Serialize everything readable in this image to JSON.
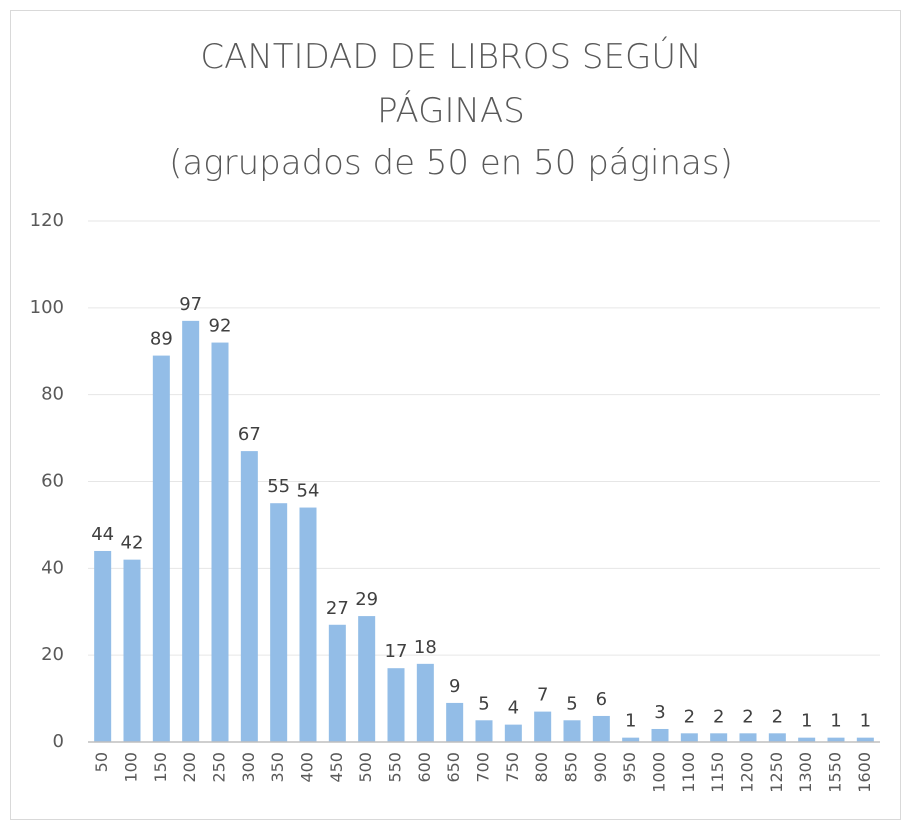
{
  "chart_data": {
    "type": "bar",
    "title": "CANTIDAD DE LIBROS SEGÚN PÁGINAS",
    "subtitle": "(agrupados de 50 en 50 páginas)",
    "categories": [
      "50",
      "100",
      "150",
      "200",
      "250",
      "300",
      "350",
      "400",
      "450",
      "500",
      "550",
      "600",
      "650",
      "700",
      "750",
      "800",
      "850",
      "900",
      "950",
      "1000",
      "1100",
      "1150",
      "1200",
      "1250",
      "1300",
      "1550",
      "1600"
    ],
    "values": [
      44,
      42,
      89,
      97,
      92,
      67,
      55,
      54,
      27,
      29,
      17,
      18,
      9,
      5,
      4,
      7,
      5,
      6,
      1,
      3,
      2,
      2,
      2,
      2,
      1,
      1,
      1
    ],
    "color": "#93bde7",
    "ylim": [
      0,
      120
    ],
    "yticks": [
      0,
      20,
      40,
      60,
      80,
      100,
      120
    ],
    "grid": true
  }
}
